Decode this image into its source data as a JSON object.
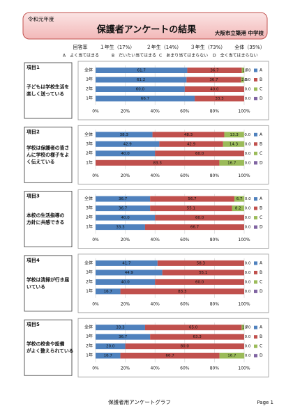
{
  "header": {
    "year": "令和元年度",
    "title": "保護者アンケートの結果",
    "school": "大阪市立築港 中学校"
  },
  "response_rate": {
    "label": "回答率",
    "items": [
      "１年生（17%）",
      "２年生（14%）",
      "３年生（73%）",
      "全体（35%）"
    ]
  },
  "scale_note": [
    "A　よく当てはまる",
    "B　だいたい当てはまる",
    "C　あまり当てはまらない",
    "D　全く当てはまらない"
  ],
  "items": [
    {
      "label": "項目1",
      "text": [
        "子どもは学校生活を",
        "楽しく送っている"
      ]
    },
    {
      "label": "項目2",
      "text": [
        "学校は保護者の皆さ",
        "んに学校の様子をよ",
        "く伝えている"
      ]
    },
    {
      "label": "項目3",
      "text": [
        "本校の生活指導の",
        "方針に共感できる"
      ]
    },
    {
      "label": "項目4",
      "text": [
        "学校は清掃が行き届",
        "いている"
      ]
    },
    {
      "label": "項目5",
      "text": [
        "学校の校舎や設備",
        "がよく整えられている"
      ]
    }
  ],
  "chart_data": [
    {
      "type": "stacked-hbar",
      "categories": [
        "全体",
        "3年",
        "2年",
        "1年"
      ],
      "xlim": [
        0,
        100
      ],
      "xticks": [
        {
          "value": 0,
          "label": "0%"
        },
        {
          "value": 20,
          "label": "20%"
        },
        {
          "value": 40,
          "label": "40%"
        },
        {
          "value": 60,
          "label": "60%"
        },
        {
          "value": 80,
          "label": "80%"
        },
        {
          "value": 100,
          "label": "100%"
        }
      ],
      "grid": true,
      "series": [
        {
          "name": "A",
          "color": "#4f81bd",
          "values": [
            61.7,
            61.2,
            60.0,
            66.7
          ],
          "value_labels": [
            "61.7",
            "61.2",
            "60.0",
            "66.7"
          ]
        },
        {
          "name": "B",
          "color": "#c0504d",
          "values": [
            36.7,
            36.7,
            40.0,
            33.3
          ],
          "value_labels": [
            "36.7",
            "36.7",
            "40.0",
            "33.3"
          ]
        },
        {
          "name": "C",
          "color": "#9bbb59",
          "values": [
            1.7,
            2.0,
            0,
            0
          ],
          "value_labels": [
            "1.7",
            "2.0",
            null,
            null
          ]
        },
        {
          "name": "D",
          "color": "#8064a2",
          "values": [
            0.0,
            0.0,
            0.0,
            0.0
          ],
          "value_labels": [
            "0.0",
            "0.0",
            "0.0",
            "0.0"
          ]
        }
      ]
    },
    {
      "type": "stacked-hbar",
      "categories": [
        "全体",
        "3年",
        "2年",
        "1年"
      ],
      "xlim": [
        0,
        100
      ],
      "xticks": [
        {
          "value": 0,
          "label": "0%"
        },
        {
          "value": 20,
          "label": "20%"
        },
        {
          "value": 40,
          "label": "40%"
        },
        {
          "value": 60,
          "label": "60%"
        },
        {
          "value": 80,
          "label": "80%"
        },
        {
          "value": 100,
          "label": "100%"
        }
      ],
      "grid": true,
      "series": [
        {
          "name": "A",
          "color": "#4f81bd",
          "values": [
            38.3,
            42.9,
            40.0,
            0.0
          ],
          "value_labels": [
            "38.3",
            "42.9",
            "40.0",
            "0.0"
          ]
        },
        {
          "name": "B",
          "color": "#c0504d",
          "values": [
            48.3,
            42.9,
            60.0,
            83.3
          ],
          "value_labels": [
            "48.3",
            "42.9",
            "60.0",
            "83.3"
          ]
        },
        {
          "name": "C",
          "color": "#9bbb59",
          "values": [
            13.3,
            14.3,
            0,
            16.7
          ],
          "value_labels": [
            "13.3",
            "14.3",
            null,
            "16.7"
          ]
        },
        {
          "name": "D",
          "color": "#8064a2",
          "values": [
            0.0,
            0.0,
            0.0,
            0.0
          ],
          "value_labels": [
            "0.0",
            "0.0",
            "0.0",
            "0.0"
          ]
        }
      ]
    },
    {
      "type": "stacked-hbar",
      "categories": [
        "全体",
        "3年",
        "2年",
        "1年"
      ],
      "xlim": [
        0,
        100
      ],
      "xticks": [
        {
          "value": 0,
          "label": "0%"
        },
        {
          "value": 20,
          "label": "20%"
        },
        {
          "value": 40,
          "label": "40%"
        },
        {
          "value": 60,
          "label": "60%"
        },
        {
          "value": 80,
          "label": "80%"
        },
        {
          "value": 100,
          "label": "100%"
        }
      ],
      "grid": true,
      "series": [
        {
          "name": "A",
          "color": "#4f81bd",
          "values": [
            36.7,
            36.7,
            40.0,
            33.3
          ],
          "value_labels": [
            "36.7",
            "36.7",
            "40.0",
            "33.3"
          ]
        },
        {
          "name": "B",
          "color": "#c0504d",
          "values": [
            56.7,
            55.1,
            60.0,
            66.7
          ],
          "value_labels": [
            "56.7",
            "55.1",
            "60.0",
            "66.7"
          ]
        },
        {
          "name": "C",
          "color": "#9bbb59",
          "values": [
            6.7,
            8.2,
            0,
            0
          ],
          "value_labels": [
            "6.7",
            "8.2",
            null,
            null
          ]
        },
        {
          "name": "D",
          "color": "#8064a2",
          "values": [
            0.0,
            0.0,
            0.0,
            0.0
          ],
          "value_labels": [
            "0.0",
            "0.0",
            "0.0",
            "0.0"
          ]
        }
      ]
    },
    {
      "type": "stacked-hbar",
      "categories": [
        "全体",
        "3年",
        "2年",
        "1年"
      ],
      "xlim": [
        0,
        100
      ],
      "xticks": [
        {
          "value": 0,
          "label": "0%"
        },
        {
          "value": 20,
          "label": "20%"
        },
        {
          "value": 40,
          "label": "40%"
        },
        {
          "value": 60,
          "label": "60%"
        },
        {
          "value": 80,
          "label": "80%"
        },
        {
          "value": 100,
          "label": "100%"
        }
      ],
      "grid": true,
      "series": [
        {
          "name": "A",
          "color": "#4f81bd",
          "values": [
            41.7,
            44.9,
            40.0,
            16.7
          ],
          "value_labels": [
            "41.7",
            "44.9",
            "40.0",
            "16.7"
          ]
        },
        {
          "name": "B",
          "color": "#c0504d",
          "values": [
            58.3,
            55.1,
            60.0,
            83.3
          ],
          "value_labels": [
            "58.3",
            "55.1",
            "60.0",
            "83.3"
          ]
        },
        {
          "name": "C",
          "color": "#9bbb59",
          "values": [
            0,
            0,
            0,
            0
          ],
          "value_labels": [
            null,
            null,
            null,
            null
          ]
        },
        {
          "name": "D",
          "color": "#8064a2",
          "values": [
            0.0,
            0.0,
            0.0,
            0.0
          ],
          "value_labels": [
            "0.0",
            "0.0",
            "0.0",
            "0.0"
          ]
        }
      ]
    },
    {
      "type": "stacked-hbar",
      "categories": [
        "全体",
        "3年",
        "2年",
        "1年"
      ],
      "xlim": [
        0,
        100
      ],
      "xticks": [
        {
          "value": 0,
          "label": "0%"
        },
        {
          "value": 20,
          "label": "20%"
        },
        {
          "value": 40,
          "label": "40%"
        },
        {
          "value": 60,
          "label": "60%"
        },
        {
          "value": 80,
          "label": "80%"
        },
        {
          "value": 100,
          "label": "100%"
        }
      ],
      "grid": true,
      "series": [
        {
          "name": "A",
          "color": "#4f81bd",
          "values": [
            33.3,
            36.7,
            20.0,
            16.7
          ],
          "value_labels": [
            "33.3",
            "36.7",
            "20.0",
            "16.7"
          ]
        },
        {
          "name": "B",
          "color": "#c0504d",
          "values": [
            65.0,
            63.3,
            80.0,
            66.7
          ],
          "value_labels": [
            "65.0",
            "63.3",
            "80.0",
            "66.7"
          ]
        },
        {
          "name": "C",
          "color": "#9bbb59",
          "values": [
            1.7,
            0,
            0,
            16.7
          ],
          "value_labels": [
            "1.7",
            null,
            null,
            "16.7"
          ]
        },
        {
          "name": "D",
          "color": "#8064a2",
          "values": [
            0.0,
            0.0,
            0.0,
            0.0
          ],
          "value_labels": [
            "0.0",
            "0.0",
            "0.0",
            "0.0"
          ]
        }
      ]
    }
  ],
  "footer": {
    "title": "保護者用アンケートグラフ",
    "page": "Page 1"
  }
}
